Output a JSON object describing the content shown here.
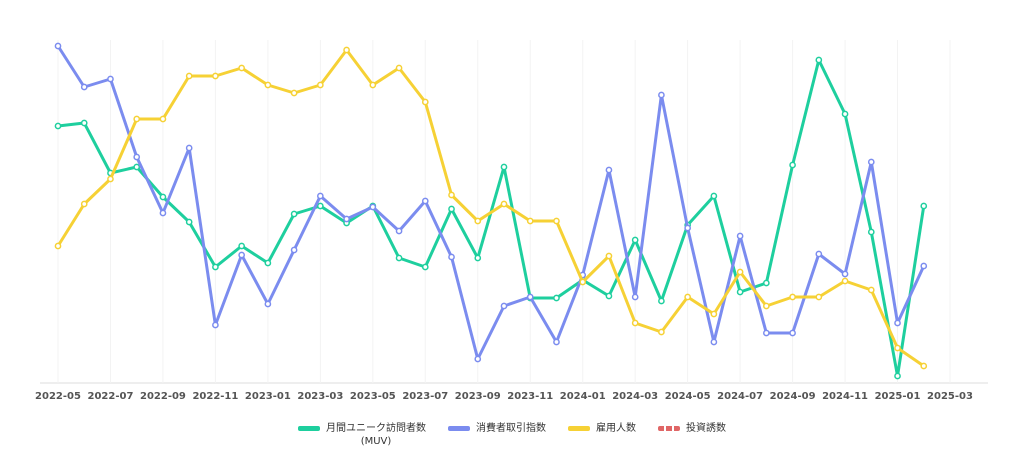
{
  "chart_data": {
    "type": "line",
    "x": [
      "2022-05",
      "2022-06",
      "2022-07",
      "2022-08",
      "2022-09",
      "2022-10",
      "2022-11",
      "2022-12",
      "2023-01",
      "2023-02",
      "2023-03",
      "2023-04",
      "2023-05",
      "2023-06",
      "2023-07",
      "2023-08",
      "2023-09",
      "2023-10",
      "2023-11",
      "2023-12",
      "2024-01",
      "2024-02",
      "2024-03",
      "2024-04",
      "2024-05",
      "2024-06",
      "2024-07",
      "2024-08",
      "2024-09",
      "2024-10",
      "2024-11",
      "2024-12",
      "2025-01",
      "2025-02"
    ],
    "xlim": [
      "2022-05",
      "2025-03"
    ],
    "xticks": [
      "2022-05",
      "2022-07",
      "2022-09",
      "2022-11",
      "2023-01",
      "2023-03",
      "2023-05",
      "2023-07",
      "2023-09",
      "2023-11",
      "2024-01",
      "2024-03",
      "2024-05",
      "2024-07",
      "2024-09",
      "2024-11",
      "2025-01",
      "2025-03"
    ],
    "ylim": [
      0,
      343
    ],
    "grid": true,
    "series": [
      {
        "name": "月間ユニーク訪問者数\n(MUV)",
        "color": "#1ecf9e",
        "values": [
          257,
          260,
          210,
          216,
          186,
          161,
          116,
          137,
          120,
          169,
          177,
          160,
          177,
          125,
          116,
          174,
          125,
          216,
          85,
          85,
          103,
          87,
          143,
          82,
          158,
          187,
          91,
          100,
          218,
          323,
          269,
          151,
          7,
          177
        ]
      },
      {
        "name": "消費者取引指数",
        "color": "#7b8cef",
        "values": [
          337,
          296,
          304,
          226,
          170,
          235,
          58,
          128,
          79,
          133,
          187,
          164,
          176,
          152,
          182,
          126,
          24,
          77,
          86,
          41,
          108,
          213,
          86,
          288,
          155,
          41,
          147,
          50,
          50,
          129,
          109,
          221,
          60,
          117
        ]
      },
      {
        "name": "雇用人数",
        "color": "#f6d135",
        "values": [
          137,
          179,
          204,
          264,
          264,
          307,
          307,
          315,
          298,
          290,
          298,
          333,
          298,
          315,
          281,
          188,
          162,
          179,
          162,
          162,
          101,
          127,
          60,
          51,
          86,
          69,
          111,
          77,
          86,
          86,
          102,
          93,
          35,
          17
        ]
      },
      {
        "name": "投資誘数",
        "color": "#e06666",
        "dashed": true,
        "values": [
          null,
          null,
          null,
          null,
          null,
          null,
          null,
          null,
          null,
          null,
          null,
          null,
          null,
          null,
          null,
          null,
          null,
          null,
          null,
          null,
          null,
          null,
          null,
          null,
          null,
          null,
          null,
          null,
          null,
          null,
          null,
          null,
          null,
          null
        ]
      }
    ]
  }
}
